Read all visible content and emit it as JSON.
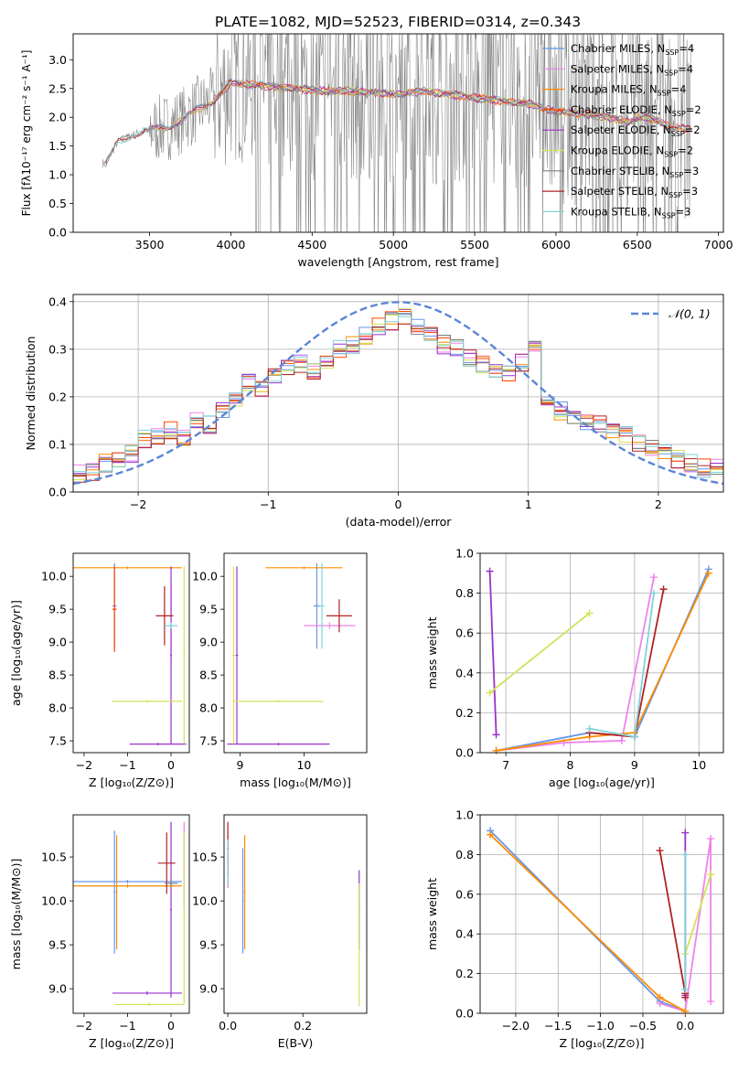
{
  "figure_title": "PLATE=1082, MJD=52523, FIBERID=0314, z=0.343",
  "colors": {
    "chabrier_miles": "#6495ed",
    "salpeter_miles": "#ee82ee",
    "kroupa_miles": "#ff8c00",
    "chabrier_elodie": "#ff4500",
    "salpeter_elodie": "#9932cc",
    "kroupa_elodie": "#d4e157",
    "chabrier_stelib": "#808080",
    "salpeter_stelib": "#b22222",
    "kroupa_stelib": "#7fd3d8",
    "data_gray": "#808080",
    "gaussian": "#5b86d6"
  },
  "chart_data": [
    {
      "id": "spectrum",
      "type": "line",
      "xlabel": "wavelength [Angstrom, rest frame]",
      "ylabel": "Flux [fλ10⁻¹⁷ erg cm⁻² s⁻¹ A⁻¹]",
      "xlim": [
        3030,
        7030
      ],
      "ylim": [
        0,
        3.45
      ],
      "xticks": [
        "3500",
        "4000",
        "4500",
        "5000",
        "5500",
        "6000",
        "6500",
        "7000"
      ],
      "yticks": [
        "0.0",
        "0.5",
        "1.0",
        "1.5",
        "2.0",
        "2.5",
        "3.0"
      ],
      "continuum": {
        "x": [
          3230,
          3300,
          3400,
          3500,
          3600,
          3700,
          3800,
          3900,
          4000,
          4200,
          4400,
          4600,
          4800,
          5000,
          5200,
          5400,
          5600,
          5800,
          6000,
          6200,
          6400,
          6600,
          6800
        ],
        "y": [
          1.2,
          1.55,
          1.7,
          1.78,
          1.82,
          1.95,
          2.15,
          2.3,
          2.6,
          2.55,
          2.5,
          2.45,
          2.45,
          2.4,
          2.45,
          2.38,
          2.3,
          2.25,
          2.1,
          2.05,
          1.95,
          1.85,
          1.8
        ]
      },
      "legend": [
        {
          "label": "Chabrier MILES, N",
          "sub": "SSP",
          "suffix": "=4",
          "color_key": "chabrier_miles"
        },
        {
          "label": "Salpeter MILES, N",
          "sub": "SSP",
          "suffix": "=4",
          "color_key": "salpeter_miles"
        },
        {
          "label": "Kroupa MILES, N",
          "sub": "SSP",
          "suffix": "=4",
          "color_key": "kroupa_miles"
        },
        {
          "label": "Chabrier ELODIE, N",
          "sub": "SSP",
          "suffix": "=2",
          "color_key": "chabrier_elodie"
        },
        {
          "label": "Salpeter ELODIE, N",
          "sub": "SSP",
          "suffix": "=2",
          "color_key": "salpeter_elodie"
        },
        {
          "label": "Kroupa ELODIE, N",
          "sub": "SSP",
          "suffix": "=2",
          "color_key": "kroupa_elodie"
        },
        {
          "label": "Chabrier STELIB, N",
          "sub": "SSP",
          "suffix": "=3",
          "color_key": "chabrier_stelib"
        },
        {
          "label": "Salpeter STELIB, N",
          "sub": "SSP",
          "suffix": "=3",
          "color_key": "salpeter_stelib"
        },
        {
          "label": "Kroupa STELIB, N",
          "sub": "SSP",
          "suffix": "=3",
          "color_key": "kroupa_stelib"
        }
      ]
    },
    {
      "id": "residuals",
      "type": "histogram",
      "xlabel": "(data-model)/error",
      "ylabel": "Normed distribution",
      "xlim": [
        -2.5,
        2.5
      ],
      "ylim": [
        0,
        0.415
      ],
      "xticks": [
        "−2",
        "−1",
        "0",
        "1",
        "2"
      ],
      "yticks": [
        "0.0",
        "0.1",
        "0.2",
        "0.3",
        "0.4"
      ],
      "legend": "𝒩(0, 1)",
      "bins": [
        -2.5,
        -2.4,
        -2.3,
        -2.2,
        -2.1,
        -2.0,
        -1.9,
        -1.8,
        -1.7,
        -1.6,
        -1.5,
        -1.4,
        -1.3,
        -1.2,
        -1.1,
        -1.0,
        -0.9,
        -0.8,
        -0.7,
        -0.6,
        -0.5,
        -0.4,
        -0.3,
        -0.2,
        -0.1,
        0.0,
        0.1,
        0.2,
        0.3,
        0.4,
        0.5,
        0.6,
        0.7,
        0.8,
        0.9,
        1.0,
        1.1,
        1.2,
        1.3,
        1.4,
        1.5,
        1.6,
        1.7,
        1.8,
        1.9,
        2.0,
        2.1,
        2.2,
        2.3,
        2.4,
        2.5
      ],
      "hist_base": [
        0.04,
        0.04,
        0.06,
        0.07,
        0.08,
        0.11,
        0.12,
        0.13,
        0.11,
        0.15,
        0.14,
        0.17,
        0.2,
        0.23,
        0.22,
        0.24,
        0.26,
        0.27,
        0.25,
        0.28,
        0.3,
        0.31,
        0.33,
        0.35,
        0.36,
        0.37,
        0.35,
        0.33,
        0.31,
        0.3,
        0.28,
        0.27,
        0.26,
        0.25,
        0.27,
        0.3,
        0.19,
        0.17,
        0.16,
        0.15,
        0.14,
        0.13,
        0.12,
        0.1,
        0.09,
        0.08,
        0.07,
        0.06,
        0.05,
        0.05
      ],
      "gaussian": {
        "mu": 0,
        "sigma": 1
      }
    },
    {
      "id": "age_vs_Z",
      "type": "errorbar",
      "xlabel": "Z [log₁₀(Z/Z⊙)]",
      "ylabel": "age  [log₁₀(age/yr)]",
      "xlim": [
        -2.25,
        0.42
      ],
      "ylim": [
        7.32,
        10.35
      ],
      "xticks": [
        "−2",
        "−1",
        "0"
      ],
      "yticks": [
        "7.5",
        "8.0",
        "8.5",
        "9.0",
        "9.5",
        "10.0"
      ],
      "points": [
        {
          "color_key": "chabrier_miles",
          "x": -1.3,
          "xerr": 0.05,
          "y": 9.55,
          "yerr": 0.65
        },
        {
          "color_key": "salpeter_miles",
          "x": 0.0,
          "xerr": 0.05,
          "y": 9.25,
          "yerr": 0.6
        },
        {
          "color_key": "kroupa_miles",
          "x": -1.0,
          "xerr": 1.25,
          "y": 10.13,
          "yerr": 0.02
        },
        {
          "color_key": "chabrier_elodie",
          "x": -1.3,
          "xerr": 0.05,
          "y": 9.5,
          "yerr": 0.65
        },
        {
          "color_key": "salpeter_elodie",
          "x": -0.3,
          "xerr": 0.65,
          "y": 7.45,
          "yerr": 0.02
        },
        {
          "color_key": "salpeter_elodie",
          "x": 0.0,
          "xerr": 0.02,
          "y": 8.8,
          "yerr": 1.35
        },
        {
          "color_key": "kroupa_elodie",
          "x": -0.55,
          "xerr": 0.8,
          "y": 8.1,
          "yerr": 0.02
        },
        {
          "color_key": "kroupa_elodie",
          "x": 0.3,
          "xerr": 0.02,
          "y": 8.8,
          "yerr": 1.35
        },
        {
          "color_key": "salpeter_stelib",
          "x": -0.15,
          "xerr": 0.2,
          "y": 9.4,
          "yerr": 0.45
        },
        {
          "color_key": "kroupa_stelib",
          "x": 0.0,
          "xerr": 0.15,
          "y": 9.25,
          "yerr": 0.05
        }
      ]
    },
    {
      "id": "age_vs_mass",
      "type": "errorbar",
      "xlabel": "mass [log₁₀(M/M⊙)]",
      "ylabel": "",
      "xlim": [
        8.75,
        10.98
      ],
      "ylim": [
        7.32,
        10.35
      ],
      "xticks": [
        "9",
        "10"
      ],
      "yticks": [
        "7.5",
        "8.0",
        "8.5",
        "9.0",
        "9.5",
        "10.0"
      ],
      "points": [
        {
          "color_key": "chabrier_miles",
          "x": 10.2,
          "xerr": 0.05,
          "y": 9.55,
          "yerr": 0.65
        },
        {
          "color_key": "salpeter_miles",
          "x": 10.4,
          "xerr": 0.4,
          "y": 9.25,
          "yerr": 0.05
        },
        {
          "color_key": "kroupa_miles",
          "x": 10.0,
          "xerr": 0.6,
          "y": 10.13,
          "yerr": 0.02
        },
        {
          "color_key": "salpeter_elodie",
          "x": 9.6,
          "xerr": 0.8,
          "y": 7.45,
          "yerr": 0.02
        },
        {
          "color_key": "salpeter_elodie",
          "x": 8.95,
          "xerr": 0.02,
          "y": 8.8,
          "yerr": 1.35
        },
        {
          "color_key": "kroupa_elodie",
          "x": 9.6,
          "xerr": 0.7,
          "y": 8.1,
          "yerr": 0.02
        },
        {
          "color_key": "kroupa_elodie",
          "x": 8.9,
          "xerr": 0.02,
          "y": 8.8,
          "yerr": 1.35
        },
        {
          "color_key": "salpeter_stelib",
          "x": 10.55,
          "xerr": 0.2,
          "y": 9.4,
          "yerr": 0.25
        },
        {
          "color_key": "kroupa_stelib",
          "x": 10.28,
          "xerr": 0.04,
          "y": 9.55,
          "yerr": 0.65
        }
      ]
    },
    {
      "id": "weight_vs_age",
      "type": "line",
      "xlabel": "age  [log₁₀(age/yr)]",
      "ylabel": "mass weight",
      "xlim": [
        6.6,
        10.38
      ],
      "ylim": [
        0,
        1.0
      ],
      "xticks": [
        "7",
        "8",
        "9",
        "10"
      ],
      "yticks": [
        "0.0",
        "0.2",
        "0.4",
        "0.6",
        "0.8",
        "1.0"
      ],
      "series": [
        {
          "color_key": "chabrier_miles",
          "x": [
            6.85,
            8.3,
            9.0,
            10.15
          ],
          "y": [
            0.01,
            0.1,
            0.08,
            0.92
          ]
        },
        {
          "color_key": "salpeter_miles",
          "x": [
            6.85,
            7.9,
            8.8,
            9.3
          ],
          "y": [
            0.01,
            0.05,
            0.06,
            0.88
          ]
        },
        {
          "color_key": "kroupa_miles",
          "x": [
            6.85,
            8.3,
            9.0,
            10.15
          ],
          "y": [
            0.01,
            0.08,
            0.1,
            0.9
          ]
        },
        {
          "color_key": "salpeter_elodie",
          "x": [
            6.75,
            6.85
          ],
          "y": [
            0.91,
            0.09
          ]
        },
        {
          "color_key": "kroupa_elodie",
          "x": [
            6.75,
            8.3
          ],
          "y": [
            0.3,
            0.7
          ]
        },
        {
          "color_key": "salpeter_stelib",
          "x": [
            8.3,
            9.0,
            9.45
          ],
          "y": [
            0.1,
            0.08,
            0.82
          ]
        },
        {
          "color_key": "kroupa_stelib",
          "x": [
            8.3,
            9.0,
            9.3
          ],
          "y": [
            0.12,
            0.08,
            0.8
          ]
        }
      ]
    },
    {
      "id": "mass_vs_Z",
      "type": "errorbar",
      "xlabel": "Z [log₁₀(Z/Z⊙)]",
      "ylabel": "mass [log₁₀(M/M⊙)]",
      "xlim": [
        -2.25,
        0.42
      ],
      "ylim": [
        8.72,
        10.98
      ],
      "xticks": [
        "−2",
        "−1",
        "0"
      ],
      "yticks": [
        "9.0",
        "9.5",
        "10.0",
        "10.5"
      ],
      "points": [
        {
          "color_key": "chabrier_miles",
          "x": -1.0,
          "xerr": 1.25,
          "y": 10.22,
          "yerr": 0.02
        },
        {
          "color_key": "chabrier_miles",
          "x": -1.3,
          "xerr": 0.02,
          "y": 10.1,
          "yerr": 0.7
        },
        {
          "color_key": "salpeter_miles",
          "x": 0.3,
          "xerr": 0.02,
          "y": 10.4,
          "yerr": 0.5
        },
        {
          "color_key": "kroupa_miles",
          "x": -1.0,
          "xerr": 1.25,
          "y": 10.17,
          "yerr": 0.02
        },
        {
          "color_key": "kroupa_miles",
          "x": -1.25,
          "xerr": 0.02,
          "y": 10.1,
          "yerr": 0.65
        },
        {
          "color_key": "salpeter_elodie",
          "x": -0.55,
          "xerr": 0.8,
          "y": 8.95,
          "yerr": 0.02
        },
        {
          "color_key": "salpeter_elodie",
          "x": 0.0,
          "xerr": 0.02,
          "y": 9.9,
          "yerr": 1.0
        },
        {
          "color_key": "kroupa_elodie",
          "x": -0.5,
          "xerr": 0.8,
          "y": 8.82,
          "yerr": 0.02
        },
        {
          "color_key": "kroupa_elodie",
          "x": 0.3,
          "xerr": 0.02,
          "y": 9.8,
          "yerr": 0.98
        },
        {
          "color_key": "salpeter_stelib",
          "x": -0.1,
          "xerr": 0.2,
          "y": 10.43,
          "yerr": 0.35
        },
        {
          "color_key": "chabrier_stelib",
          "x": 0.0,
          "xerr": 0.15,
          "y": 10.2,
          "yerr": 0.05
        }
      ]
    },
    {
      "id": "mass_vs_ebv",
      "type": "errorbar",
      "xlabel": "E(B-V)",
      "ylabel": "",
      "xlim": [
        -0.01,
        0.37
      ],
      "ylim": [
        8.72,
        10.98
      ],
      "xticks": [
        "0.0",
        "0.2"
      ],
      "yticks": [
        "9.0",
        "9.5",
        "10.0",
        "10.5"
      ],
      "points": [
        {
          "color_key": "chabrier_miles",
          "x": 0.0,
          "xerr": 0.002,
          "y": 10.45,
          "yerr": 0.3
        },
        {
          "color_key": "salpeter_miles",
          "x": 0.0,
          "xerr": 0.002,
          "y": 10.5,
          "yerr": 0.35
        },
        {
          "color_key": "kroupa_miles",
          "x": 0.045,
          "xerr": 0.002,
          "y": 10.1,
          "yerr": 0.65
        },
        {
          "color_key": "chabrier_miles",
          "x": 0.04,
          "xerr": 0.002,
          "y": 10.0,
          "yerr": 0.6
        },
        {
          "color_key": "salpeter_elodie",
          "x": 0.35,
          "xerr": 0.002,
          "y": 9.9,
          "yerr": 0.45
        },
        {
          "color_key": "kroupa_elodie",
          "x": 0.35,
          "xerr": 0.002,
          "y": 9.5,
          "yerr": 0.7
        },
        {
          "color_key": "salpeter_stelib",
          "x": 0.0,
          "xerr": 0.002,
          "y": 10.6,
          "yerr": 0.3
        },
        {
          "color_key": "kroupa_stelib",
          "x": 0.0,
          "xerr": 0.002,
          "y": 10.45,
          "yerr": 0.25
        }
      ]
    },
    {
      "id": "weight_vs_Z",
      "type": "line",
      "xlabel": "Z [log₁₀(Z/Z⊙)]",
      "ylabel": "mass weight",
      "xlim": [
        -2.42,
        0.45
      ],
      "ylim": [
        0,
        1.0
      ],
      "xticks": [
        "−2.0",
        "−1.5",
        "−1.0",
        "−0.5",
        "0.0"
      ],
      "yticks": [
        "0.0",
        "0.2",
        "0.4",
        "0.6",
        "0.8",
        "1.0"
      ],
      "series": [
        {
          "color_key": "chabrier_miles",
          "x": [
            -2.3,
            -0.3,
            0.0
          ],
          "y": [
            0.92,
            0.06,
            0.01
          ]
        },
        {
          "color_key": "salpeter_miles",
          "x": [
            -0.3,
            0.0,
            0.3,
            0.3
          ],
          "y": [
            0.05,
            0.01,
            0.88,
            0.06
          ]
        },
        {
          "color_key": "kroupa_miles",
          "x": [
            -2.3,
            -0.3,
            0.0
          ],
          "y": [
            0.9,
            0.08,
            0.01
          ]
        },
        {
          "color_key": "salpeter_elodie",
          "x": [
            0.0,
            0.0
          ],
          "y": [
            0.91,
            0.09
          ]
        },
        {
          "color_key": "kroupa_elodie",
          "x": [
            0.0,
            0.3
          ],
          "y": [
            0.3,
            0.7
          ]
        },
        {
          "color_key": "salpeter_stelib",
          "x": [
            -0.3,
            0.0,
            0.0
          ],
          "y": [
            0.82,
            0.1,
            0.08
          ]
        },
        {
          "color_key": "kroupa_stelib",
          "x": [
            0.0,
            0.0
          ],
          "y": [
            0.8,
            0.12
          ]
        }
      ]
    }
  ]
}
